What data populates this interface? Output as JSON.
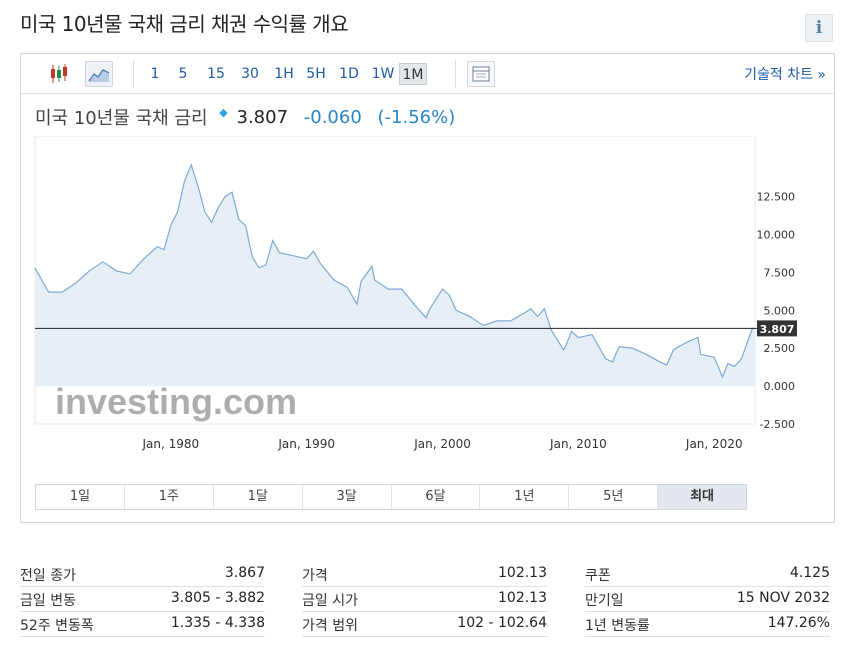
{
  "header": {
    "title": "미국 10년물 국채 금리   채권 수익률 개요",
    "info_icon": "info-icon",
    "info_label": "i"
  },
  "toolbar": {
    "intervals": [
      {
        "label": "1",
        "active": false
      },
      {
        "label": "5",
        "active": false
      },
      {
        "label": "15",
        "active": false
      },
      {
        "label": "30",
        "active": false
      },
      {
        "label": "1H",
        "active": false
      },
      {
        "label": "5H",
        "active": false
      },
      {
        "label": "1D",
        "active": false
      },
      {
        "label": "1W",
        "active": false
      },
      {
        "label": "1M",
        "active": true
      }
    ],
    "icons": [
      "candlestick-chart-icon",
      "area-chart-icon",
      "data-table-icon"
    ],
    "technical_chart_link": "기술적 차트 »"
  },
  "quote": {
    "name": "미국 10년물 국채 금리",
    "price": "3.807",
    "change": "-0.060",
    "change_pct": "(-1.56%)",
    "change_color": "#2a86c9"
  },
  "chart_data": {
    "type": "area",
    "x_tick_labels": [
      "Jan, 1980",
      "Jan, 1990",
      "Jan, 2000",
      "Jan, 2010",
      "Jan, 2020"
    ],
    "x_tick_values": [
      1980,
      1990,
      2000,
      2010,
      2020
    ],
    "y_tick_labels": [
      "12.500",
      "10.000",
      "7.500",
      "5.000",
      "2.500",
      "0.000",
      "-2.500"
    ],
    "y_tick_values": [
      12.5,
      10.0,
      7.5,
      5.0,
      2.5,
      0.0,
      -2.5
    ],
    "xlim": [
      1970,
      2023
    ],
    "ylim": [
      -2.5,
      16.5
    ],
    "current_value": 3.807,
    "current_label": "3.807",
    "line_color": "#7fa9d3",
    "fill_color": "#e4edf5",
    "watermark": "investing.com",
    "x": [
      1970,
      1971,
      1972,
      1973,
      1974,
      1975,
      1976,
      1977,
      1978,
      1978.5,
      1979,
      1979.5,
      1980,
      1980.5,
      1981,
      1981.5,
      1982,
      1982.5,
      1983,
      1983.5,
      1984,
      1984.5,
      1985,
      1985.5,
      1986,
      1986.5,
      1987,
      1987.5,
      1988,
      1989,
      1990,
      1990.5,
      1991,
      1992,
      1993,
      1993.7,
      1994,
      1994.8,
      1995,
      1996,
      1997,
      1998,
      1998.8,
      1999,
      2000,
      2000.5,
      2001,
      2002,
      2003,
      2004,
      2005,
      2006,
      2006.5,
      2007,
      2007.5,
      2008,
      2008.9,
      2009,
      2009.5,
      2010,
      2011,
      2012,
      2012.5,
      2013,
      2014,
      2015,
      2016,
      2016.5,
      2017,
      2018,
      2018.8,
      2019,
      2020,
      2020.6,
      2021,
      2021.5,
      2022,
      2022.8,
      2023
    ],
    "y": [
      7.8,
      6.2,
      6.2,
      6.8,
      7.6,
      8.2,
      7.6,
      7.4,
      8.4,
      8.8,
      9.2,
      9.0,
      10.6,
      11.5,
      13.5,
      14.6,
      13.2,
      11.5,
      10.8,
      11.8,
      12.5,
      12.8,
      11.0,
      10.6,
      8.5,
      7.8,
      8.0,
      9.6,
      8.8,
      8.6,
      8.4,
      8.9,
      8.1,
      7.0,
      6.5,
      5.4,
      6.9,
      7.9,
      7.0,
      6.4,
      6.4,
      5.3,
      4.5,
      5.0,
      6.4,
      6.0,
      5.0,
      4.6,
      4.0,
      4.3,
      4.3,
      4.8,
      5.1,
      4.6,
      5.1,
      3.7,
      2.4,
      2.5,
      3.6,
      3.2,
      3.4,
      1.8,
      1.6,
      2.6,
      2.5,
      2.1,
      1.6,
      1.4,
      2.4,
      2.9,
      3.2,
      2.1,
      1.9,
      0.6,
      1.5,
      1.3,
      1.8,
      3.8,
      3.8
    ]
  },
  "period_buttons": [
    {
      "label": "1일",
      "active": false
    },
    {
      "label": "1주",
      "active": false
    },
    {
      "label": "1달",
      "active": false
    },
    {
      "label": "3달",
      "active": false
    },
    {
      "label": "6달",
      "active": false
    },
    {
      "label": "1년",
      "active": false
    },
    {
      "label": "5년",
      "active": false
    },
    {
      "label": "최대",
      "active": true
    }
  ],
  "stats": {
    "col1": [
      {
        "label": "전일 종가",
        "value": "3.867"
      },
      {
        "label": "금일 변동",
        "value": "3.805 - 3.882"
      },
      {
        "label": "52주 변동폭",
        "value": "1.335 - 4.338"
      }
    ],
    "col2": [
      {
        "label": "가격",
        "value": "102.13"
      },
      {
        "label": "금일 시가",
        "value": "102.13"
      },
      {
        "label": "가격 범위",
        "value": "102 - 102.64"
      }
    ],
    "col3": [
      {
        "label": "쿠폰",
        "value": "4.125"
      },
      {
        "label": "만기일",
        "value": "15 NOV 2032"
      },
      {
        "label": "1년 변동률",
        "value": "147.26%"
      }
    ]
  }
}
